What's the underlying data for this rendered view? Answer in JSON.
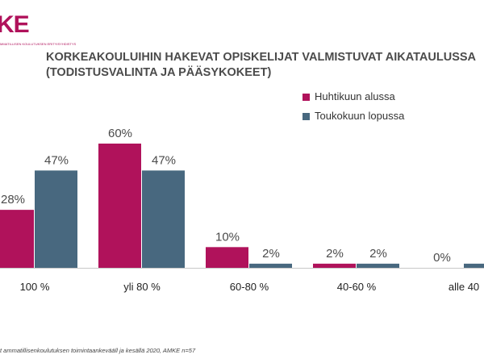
{
  "logo": {
    "text": "KE",
    "subtitle": "MMATILLISEN KOULUTUKSEN ERITYISYHDISTYS",
    "color": "#b0125b"
  },
  "source": "t ammatillisenkoulutuksen toimintaankevääll ja kesällä 2020, AMKE n=57",
  "colors": {
    "series1": "#b0125b",
    "series2": "#48687f",
    "text": "#4b4b4b"
  },
  "chart_data": {
    "type": "bar",
    "title": "KORKEAKOULUIHIN HAKEVAT OPISKELIJAT VALMISTUVAT AIKATAULUSSA (TODISTUSVALINTA JA PÄÄSYKOKEET)",
    "categories": [
      "100 %",
      "yli 80 %",
      "60-80 %",
      "40-60 %",
      "alle 40"
    ],
    "series": [
      {
        "name": "Huhtikuun alussa",
        "values": [
          28,
          60,
          10,
          2,
          0
        ],
        "labels": [
          "28%",
          "60%",
          "10%",
          "2%",
          "0%"
        ],
        "color": "#b0125b"
      },
      {
        "name": "Toukokuun lopussa",
        "values": [
          47,
          47,
          2,
          2,
          2
        ],
        "labels": [
          "47%",
          "47%",
          "2%",
          "2%",
          ""
        ],
        "color": "#48687f"
      }
    ],
    "ylim": [
      0,
      60
    ],
    "grid": false,
    "legend": "top-right",
    "xlabel": "",
    "ylabel": ""
  }
}
